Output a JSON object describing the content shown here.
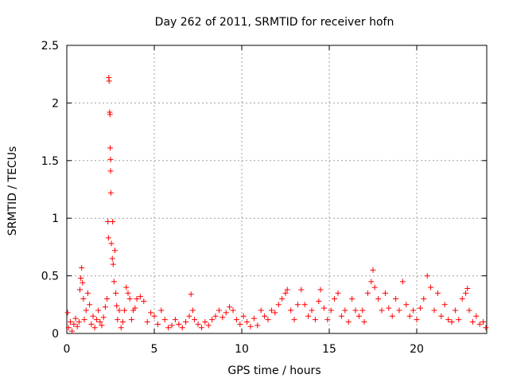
{
  "chart_data": {
    "type": "scatter",
    "title": "Day 262 of 2011, SRMTID for receiver hofn",
    "xlabel": "GPS time / hours",
    "ylabel": "SRMTID / TECUs",
    "xlim": [
      0,
      24
    ],
    "ylim": [
      0,
      2.5
    ],
    "xticks": [
      0,
      5,
      10,
      15,
      20
    ],
    "yticks": [
      0,
      0.5,
      1,
      1.5,
      2,
      2.5
    ],
    "xtick_labels": [
      "0",
      "5",
      "10",
      "15",
      "20"
    ],
    "ytick_labels": [
      "0",
      "0.5",
      "1",
      "1.5",
      "2",
      "2.5"
    ],
    "grid": true,
    "marker": "+",
    "color": "#ff0000",
    "series": [
      {
        "name": "SRMTID",
        "points": [
          [
            0.05,
            0.18
          ],
          [
            0.1,
            0.05
          ],
          [
            0.2,
            0.1
          ],
          [
            0.3,
            0.02
          ],
          [
            0.4,
            0.08
          ],
          [
            0.5,
            0.13
          ],
          [
            0.6,
            0.06
          ],
          [
            0.7,
            0.1
          ],
          [
            0.75,
            0.38
          ],
          [
            0.8,
            0.48
          ],
          [
            0.85,
            0.57
          ],
          [
            0.9,
            0.44
          ],
          [
            0.95,
            0.3
          ],
          [
            1.0,
            0.12
          ],
          [
            1.1,
            0.2
          ],
          [
            1.2,
            0.35
          ],
          [
            1.3,
            0.25
          ],
          [
            1.4,
            0.08
          ],
          [
            1.5,
            0.15
          ],
          [
            1.6,
            0.05
          ],
          [
            1.7,
            0.12
          ],
          [
            1.8,
            0.2
          ],
          [
            1.9,
            0.1
          ],
          [
            2.0,
            0.07
          ],
          [
            2.1,
            0.14
          ],
          [
            2.2,
            0.23
          ],
          [
            2.3,
            0.3
          ],
          [
            2.35,
            0.97
          ],
          [
            2.38,
            0.83
          ],
          [
            2.4,
            2.22
          ],
          [
            2.42,
            2.19
          ],
          [
            2.45,
            1.92
          ],
          [
            2.47,
            1.9
          ],
          [
            2.48,
            1.61
          ],
          [
            2.5,
            1.51
          ],
          [
            2.5,
            1.41
          ],
          [
            2.52,
            1.22
          ],
          [
            2.55,
            0.78
          ],
          [
            2.6,
            0.65
          ],
          [
            2.62,
            0.97
          ],
          [
            2.65,
            0.6
          ],
          [
            2.7,
            0.45
          ],
          [
            2.75,
            0.72
          ],
          [
            2.8,
            0.35
          ],
          [
            2.85,
            0.24
          ],
          [
            2.9,
            0.12
          ],
          [
            3.0,
            0.2
          ],
          [
            3.1,
            0.05
          ],
          [
            3.2,
            0.1
          ],
          [
            3.3,
            0.2
          ],
          [
            3.4,
            0.4
          ],
          [
            3.5,
            0.35
          ],
          [
            3.6,
            0.3
          ],
          [
            3.7,
            0.12
          ],
          [
            3.8,
            0.2
          ],
          [
            3.9,
            0.22
          ],
          [
            4.0,
            0.3
          ],
          [
            4.2,
            0.32
          ],
          [
            4.4,
            0.28
          ],
          [
            4.6,
            0.1
          ],
          [
            4.8,
            0.18
          ],
          [
            5.0,
            0.15
          ],
          [
            5.2,
            0.08
          ],
          [
            5.4,
            0.2
          ],
          [
            5.6,
            0.12
          ],
          [
            5.8,
            0.05
          ],
          [
            6.0,
            0.07
          ],
          [
            6.2,
            0.12
          ],
          [
            6.4,
            0.08
          ],
          [
            6.6,
            0.05
          ],
          [
            6.8,
            0.1
          ],
          [
            7.0,
            0.15
          ],
          [
            7.1,
            0.34
          ],
          [
            7.2,
            0.2
          ],
          [
            7.3,
            0.12
          ],
          [
            7.5,
            0.08
          ],
          [
            7.7,
            0.05
          ],
          [
            7.9,
            0.1
          ],
          [
            8.1,
            0.07
          ],
          [
            8.3,
            0.12
          ],
          [
            8.5,
            0.15
          ],
          [
            8.7,
            0.2
          ],
          [
            8.9,
            0.14
          ],
          [
            9.1,
            0.18
          ],
          [
            9.3,
            0.23
          ],
          [
            9.5,
            0.2
          ],
          [
            9.7,
            0.12
          ],
          [
            9.9,
            0.08
          ],
          [
            10.1,
            0.15
          ],
          [
            10.3,
            0.1
          ],
          [
            10.5,
            0.06
          ],
          [
            10.7,
            0.13
          ],
          [
            10.9,
            0.07
          ],
          [
            11.1,
            0.2
          ],
          [
            11.3,
            0.15
          ],
          [
            11.5,
            0.12
          ],
          [
            11.7,
            0.2
          ],
          [
            11.9,
            0.18
          ],
          [
            12.1,
            0.25
          ],
          [
            12.3,
            0.3
          ],
          [
            12.5,
            0.35
          ],
          [
            12.6,
            0.38
          ],
          [
            12.8,
            0.2
          ],
          [
            13.0,
            0.12
          ],
          [
            13.2,
            0.25
          ],
          [
            13.4,
            0.38
          ],
          [
            13.6,
            0.25
          ],
          [
            13.8,
            0.15
          ],
          [
            14.0,
            0.2
          ],
          [
            14.2,
            0.12
          ],
          [
            14.4,
            0.28
          ],
          [
            14.5,
            0.38
          ],
          [
            14.7,
            0.22
          ],
          [
            14.9,
            0.12
          ],
          [
            15.1,
            0.2
          ],
          [
            15.3,
            0.3
          ],
          [
            15.5,
            0.35
          ],
          [
            15.7,
            0.15
          ],
          [
            15.9,
            0.2
          ],
          [
            16.1,
            0.1
          ],
          [
            16.3,
            0.3
          ],
          [
            16.5,
            0.2
          ],
          [
            16.7,
            0.15
          ],
          [
            16.9,
            0.2
          ],
          [
            17.0,
            0.1
          ],
          [
            17.2,
            0.35
          ],
          [
            17.4,
            0.45
          ],
          [
            17.5,
            0.55
          ],
          [
            17.6,
            0.4
          ],
          [
            17.8,
            0.3
          ],
          [
            18.0,
            0.2
          ],
          [
            18.2,
            0.35
          ],
          [
            18.4,
            0.22
          ],
          [
            18.6,
            0.15
          ],
          [
            18.8,
            0.3
          ],
          [
            19.0,
            0.2
          ],
          [
            19.2,
            0.45
          ],
          [
            19.4,
            0.25
          ],
          [
            19.6,
            0.15
          ],
          [
            19.8,
            0.2
          ],
          [
            20.0,
            0.12
          ],
          [
            20.2,
            0.22
          ],
          [
            20.4,
            0.3
          ],
          [
            20.6,
            0.5
          ],
          [
            20.8,
            0.4
          ],
          [
            21.0,
            0.2
          ],
          [
            21.2,
            0.35
          ],
          [
            21.4,
            0.15
          ],
          [
            21.6,
            0.25
          ],
          [
            21.8,
            0.12
          ],
          [
            22.0,
            0.1
          ],
          [
            22.2,
            0.2
          ],
          [
            22.4,
            0.12
          ],
          [
            22.6,
            0.3
          ],
          [
            22.8,
            0.35
          ],
          [
            22.9,
            0.39
          ],
          [
            23.0,
            0.2
          ],
          [
            23.2,
            0.1
          ],
          [
            23.4,
            0.15
          ],
          [
            23.6,
            0.08
          ],
          [
            23.8,
            0.1
          ],
          [
            23.95,
            0.05
          ]
        ]
      }
    ]
  }
}
